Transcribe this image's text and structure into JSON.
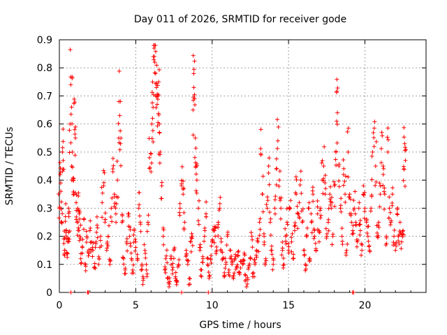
{
  "chart_data": {
    "type": "scatter",
    "title": "Day 011 of 2026, SRMTID for receiver gode",
    "xlabel": "GPS time / hours",
    "ylabel": "SRMTID / TECUs",
    "xlim": [
      0,
      24
    ],
    "ylim": [
      0,
      0.9
    ],
    "xticks": [
      0,
      5,
      10,
      15,
      20
    ],
    "yticks": [
      0,
      0.1,
      0.2,
      0.3,
      0.4,
      0.5,
      0.6,
      0.7,
      0.8,
      0.9
    ],
    "xtick_labels": [
      "0",
      "5",
      "10",
      "15",
      "20"
    ],
    "ytick_labels": [
      "0",
      "0.1",
      "0.2",
      "0.3",
      "0.4",
      "0.5",
      "0.6",
      "0.7",
      "0.8",
      "0.9"
    ],
    "grid": true,
    "marker": "plus",
    "color": "#ff0000",
    "series": [
      {
        "name": "SRMTID",
        "points": [
          [
            0.0,
            0.3
          ],
          [
            0.05,
            0.42
          ],
          [
            0.1,
            0.36
          ],
          [
            0.15,
            0.25
          ],
          [
            0.2,
            0.5
          ],
          [
            0.25,
            0.47
          ],
          [
            0.3,
            0.19
          ],
          [
            0.35,
            0.15
          ],
          [
            0.4,
            0.27
          ],
          [
            0.45,
            0.22
          ],
          [
            0.5,
            0.14
          ],
          [
            0.55,
            0.18
          ],
          [
            0.6,
            0.3
          ],
          [
            0.65,
            0.19
          ],
          [
            0.7,
            0.6
          ],
          [
            0.75,
            0.74
          ],
          [
            0.8,
            0.66
          ],
          [
            0.85,
            0.5
          ],
          [
            0.9,
            0.4
          ],
          [
            0.95,
            0.35
          ],
          [
            1.0,
            0.58
          ],
          [
            1.05,
            0.55
          ],
          [
            1.1,
            0.32
          ],
          [
            1.15,
            0.25
          ],
          [
            1.2,
            0.3
          ],
          [
            1.25,
            0.23
          ],
          [
            1.3,
            0.28
          ],
          [
            1.35,
            0.2
          ],
          [
            1.4,
            0.12
          ],
          [
            1.5,
            0.16
          ],
          [
            1.6,
            0.26
          ],
          [
            1.7,
            0.1
          ],
          [
            1.8,
            0.2
          ],
          [
            1.9,
            0.13
          ],
          [
            2.0,
            0.22
          ],
          [
            2.1,
            0.18
          ],
          [
            2.2,
            0.15
          ],
          [
            2.3,
            0.09
          ],
          [
            2.4,
            0.18
          ],
          [
            2.5,
            0.23
          ],
          [
            2.6,
            0.12
          ],
          [
            2.7,
            0.2
          ],
          [
            2.8,
            0.32
          ],
          [
            2.9,
            0.38
          ],
          [
            3.0,
            0.26
          ],
          [
            3.1,
            0.15
          ],
          [
            3.2,
            0.2
          ],
          [
            3.3,
            0.1
          ],
          [
            3.4,
            0.3
          ],
          [
            3.5,
            0.44
          ],
          [
            3.6,
            0.35
          ],
          [
            3.7,
            0.28
          ],
          [
            3.8,
            0.4
          ],
          [
            3.9,
            0.68
          ],
          [
            3.95,
            0.63
          ],
          [
            4.0,
            0.53
          ],
          [
            4.1,
            0.25
          ],
          [
            4.2,
            0.12
          ],
          [
            4.3,
            0.08
          ],
          [
            4.4,
            0.18
          ],
          [
            4.5,
            0.28
          ],
          [
            4.6,
            0.2
          ],
          [
            4.7,
            0.14
          ],
          [
            4.8,
            0.08
          ],
          [
            4.9,
            0.22
          ],
          [
            5.0,
            0.18
          ],
          [
            5.1,
            0.12
          ],
          [
            5.2,
            0.3
          ],
          [
            5.3,
            0.25
          ],
          [
            5.4,
            0.1
          ],
          [
            5.5,
            0.05
          ],
          [
            5.6,
            0.15
          ],
          [
            5.7,
            0.08
          ],
          [
            5.8,
            0.25
          ],
          [
            5.9,
            0.48
          ],
          [
            6.0,
            0.43
          ],
          [
            6.05,
            0.6
          ],
          [
            6.1,
            0.62
          ],
          [
            6.15,
            0.84
          ],
          [
            6.2,
            0.87
          ],
          [
            6.25,
            0.82
          ],
          [
            6.3,
            0.78
          ],
          [
            6.35,
            0.73
          ],
          [
            6.4,
            0.67
          ],
          [
            6.45,
            0.7
          ],
          [
            6.5,
            0.75
          ],
          [
            6.55,
            0.6
          ],
          [
            6.6,
            0.5
          ],
          [
            6.7,
            0.38
          ],
          [
            6.8,
            0.2
          ],
          [
            6.9,
            0.08
          ],
          [
            7.0,
            0.13
          ],
          [
            7.1,
            0.05
          ],
          [
            7.2,
            0.03
          ],
          [
            7.3,
            0.12
          ],
          [
            7.4,
            0.08
          ],
          [
            7.5,
            0.15
          ],
          [
            7.6,
            0.05
          ],
          [
            7.7,
            0.04
          ],
          [
            7.8,
            0.1
          ],
          [
            7.9,
            0.3
          ],
          [
            8.0,
            0.38
          ],
          [
            8.1,
            0.35
          ],
          [
            8.2,
            0.25
          ],
          [
            8.3,
            0.15
          ],
          [
            8.4,
            0.1
          ],
          [
            8.5,
            0.05
          ],
          [
            8.6,
            0.18
          ],
          [
            8.7,
            0.2
          ],
          [
            8.75,
            0.65
          ],
          [
            8.8,
            0.73
          ],
          [
            8.85,
            0.69
          ],
          [
            8.9,
            0.55
          ],
          [
            8.95,
            0.45
          ],
          [
            9.0,
            0.4
          ],
          [
            9.1,
            0.3
          ],
          [
            9.2,
            0.15
          ],
          [
            9.3,
            0.08
          ],
          [
            9.4,
            0.12
          ],
          [
            9.5,
            0.2
          ],
          [
            9.6,
            0.28
          ],
          [
            9.7,
            0.1
          ],
          [
            9.8,
            0.05
          ],
          [
            9.9,
            0.12
          ],
          [
            10.0,
            0.18
          ],
          [
            10.1,
            0.22
          ],
          [
            10.2,
            0.2
          ],
          [
            10.3,
            0.15
          ],
          [
            10.4,
            0.25
          ],
          [
            10.5,
            0.3
          ],
          [
            10.6,
            0.18
          ],
          [
            10.7,
            0.12
          ],
          [
            10.8,
            0.07
          ],
          [
            10.9,
            0.1
          ],
          [
            11.0,
            0.2
          ],
          [
            11.1,
            0.08
          ],
          [
            11.2,
            0.15
          ],
          [
            11.3,
            0.1
          ],
          [
            11.4,
            0.06
          ],
          [
            11.5,
            0.12
          ],
          [
            11.6,
            0.09
          ],
          [
            11.7,
            0.13
          ],
          [
            11.8,
            0.07
          ],
          [
            11.9,
            0.11
          ],
          [
            12.0,
            0.1
          ],
          [
            12.1,
            0.14
          ],
          [
            12.2,
            0.06
          ],
          [
            12.3,
            0.03
          ],
          [
            12.4,
            0.09
          ],
          [
            12.5,
            0.12
          ],
          [
            12.6,
            0.2
          ],
          [
            12.7,
            0.07
          ],
          [
            12.8,
            0.1
          ],
          [
            12.9,
            0.15
          ],
          [
            13.0,
            0.18
          ],
          [
            13.1,
            0.25
          ],
          [
            13.2,
            0.49
          ],
          [
            13.3,
            0.35
          ],
          [
            13.4,
            0.2
          ],
          [
            13.5,
            0.12
          ],
          [
            13.6,
            0.3
          ],
          [
            13.7,
            0.45
          ],
          [
            13.8,
            0.25
          ],
          [
            13.9,
            0.15
          ],
          [
            14.0,
            0.1
          ],
          [
            14.1,
            0.3
          ],
          [
            14.2,
            0.44
          ],
          [
            14.3,
            0.54
          ],
          [
            14.4,
            0.4
          ],
          [
            14.5,
            0.3
          ],
          [
            14.6,
            0.15
          ],
          [
            14.7,
            0.1
          ],
          [
            14.8,
            0.2
          ],
          [
            14.9,
            0.25
          ],
          [
            15.0,
            0.15
          ],
          [
            15.1,
            0.3
          ],
          [
            15.2,
            0.18
          ],
          [
            15.3,
            0.12
          ],
          [
            15.4,
            0.22
          ],
          [
            15.5,
            0.35
          ],
          [
            15.6,
            0.28
          ],
          [
            15.7,
            0.32
          ],
          [
            15.8,
            0.4
          ],
          [
            15.9,
            0.25
          ],
          [
            16.0,
            0.15
          ],
          [
            16.1,
            0.1
          ],
          [
            16.2,
            0.2
          ],
          [
            16.3,
            0.3
          ],
          [
            16.4,
            0.12
          ],
          [
            16.5,
            0.25
          ],
          [
            16.6,
            0.35
          ],
          [
            16.7,
            0.2
          ],
          [
            16.8,
            0.15
          ],
          [
            16.9,
            0.28
          ],
          [
            17.0,
            0.22
          ],
          [
            17.1,
            0.3
          ],
          [
            17.2,
            0.4
          ],
          [
            17.3,
            0.45
          ],
          [
            17.4,
            0.35
          ],
          [
            17.5,
            0.2
          ],
          [
            17.6,
            0.25
          ],
          [
            17.7,
            0.35
          ],
          [
            17.8,
            0.3
          ],
          [
            17.9,
            0.2
          ],
          [
            18.0,
            0.38
          ],
          [
            18.1,
            0.5
          ],
          [
            18.15,
            0.61
          ],
          [
            18.2,
            0.64
          ],
          [
            18.3,
            0.45
          ],
          [
            18.4,
            0.3
          ],
          [
            18.5,
            0.2
          ],
          [
            18.6,
            0.42
          ],
          [
            18.7,
            0.35
          ],
          [
            18.8,
            0.15
          ],
          [
            18.9,
            0.5
          ],
          [
            19.0,
            0.35
          ],
          [
            19.1,
            0.28
          ],
          [
            19.2,
            0.22
          ],
          [
            19.3,
            0.3
          ],
          [
            19.4,
            0.25
          ],
          [
            19.5,
            0.18
          ],
          [
            19.6,
            0.3
          ],
          [
            19.7,
            0.22
          ],
          [
            19.8,
            0.15
          ],
          [
            19.9,
            0.38
          ],
          [
            20.0,
            0.3
          ],
          [
            20.1,
            0.25
          ],
          [
            20.2,
            0.2
          ],
          [
            20.3,
            0.15
          ],
          [
            20.4,
            0.3
          ],
          [
            20.5,
            0.5
          ],
          [
            20.6,
            0.52
          ],
          [
            20.7,
            0.45
          ],
          [
            20.8,
            0.2
          ],
          [
            20.9,
            0.25
          ],
          [
            21.0,
            0.35
          ],
          [
            21.1,
            0.57
          ],
          [
            21.2,
            0.42
          ],
          [
            21.3,
            0.35
          ],
          [
            21.4,
            0.2
          ],
          [
            21.5,
            0.5
          ],
          [
            21.6,
            0.3
          ],
          [
            21.7,
            0.25
          ],
          [
            21.8,
            0.35
          ],
          [
            21.9,
            0.2
          ],
          [
            22.0,
            0.15
          ],
          [
            22.1,
            0.28
          ],
          [
            22.2,
            0.2
          ],
          [
            22.3,
            0.25
          ],
          [
            22.4,
            0.18
          ],
          [
            22.5,
            0.22
          ],
          [
            22.55,
            0.44
          ],
          [
            22.6,
            0.53
          ],
          [
            22.65,
            0.47
          ]
        ]
      }
    ],
    "zero_points_x": [
      0.75,
      1.85,
      1.9,
      8.0,
      9.75,
      19.2,
      19.25
    ]
  }
}
